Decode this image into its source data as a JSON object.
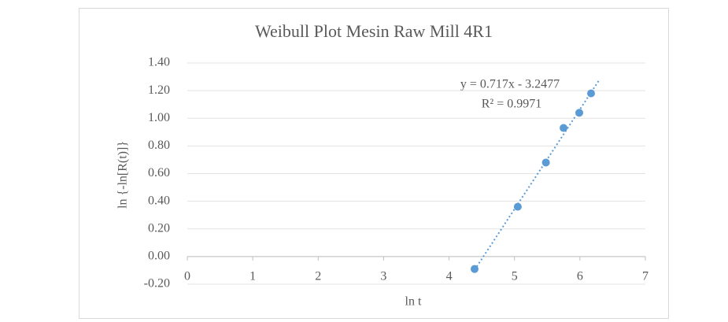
{
  "chart_data": {
    "type": "scatter",
    "title": "Weibull Plot Mesin Raw Mill 4R1",
    "x_label": "ln t",
    "y_label": "ln {-ln[R(t)]}",
    "annotations": [
      "y = 0.717x - 3.2477",
      "R² = 0.9971"
    ],
    "x": [
      4.39,
      5.05,
      5.48,
      5.75,
      5.99,
      6.17
    ],
    "values": [
      -0.09,
      0.36,
      0.68,
      0.93,
      1.04,
      1.18
    ],
    "color": "#5b9bd5",
    "trendline": "linear",
    "xlim": [
      0,
      7
    ],
    "xticks": [
      0,
      1,
      2,
      3,
      4,
      5,
      6,
      7
    ],
    "ylim": [
      -0.2,
      1.4
    ],
    "yticks": [
      {
        "value": -0.2,
        "label": "-0.20"
      },
      {
        "value": 0,
        "label": "0.00"
      },
      {
        "value": 0.2,
        "label": "0.20"
      },
      {
        "value": 0.4,
        "label": "0.40"
      },
      {
        "value": 0.6,
        "label": "0.60"
      },
      {
        "value": 0.8,
        "label": "0.80"
      },
      {
        "value": 1,
        "label": "1.00"
      },
      {
        "value": 1.2,
        "label": "1.20"
      },
      {
        "value": 1.4,
        "label": "1.40"
      }
    ],
    "grid": true
  }
}
